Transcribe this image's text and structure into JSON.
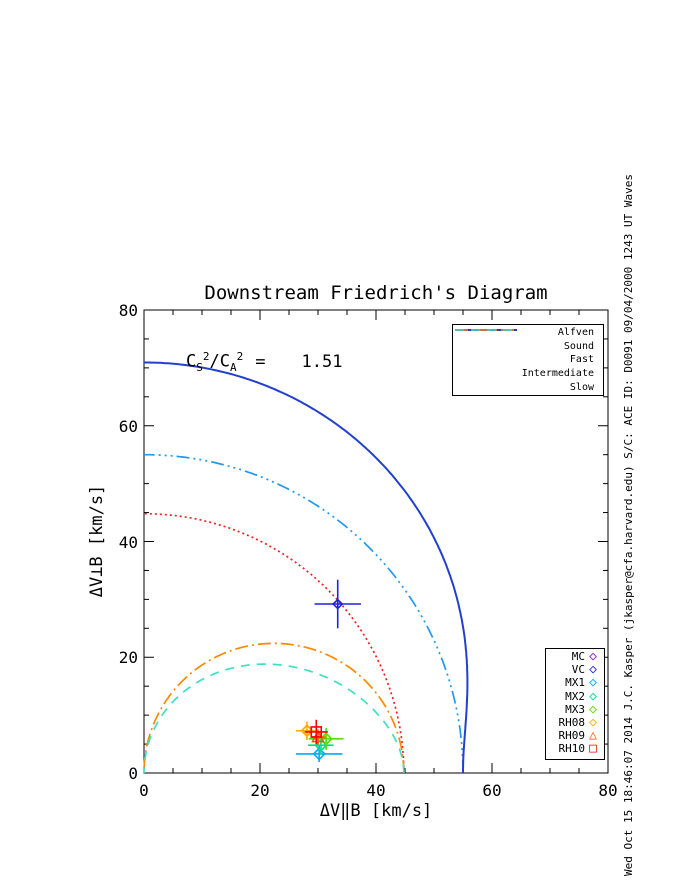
{
  "title": "Downstream Friedrich's Diagram",
  "annotation": {
    "c1": "C",
    "s1": "S",
    "e1": "2",
    "slash": "/",
    "c2": "C",
    "s2": "A",
    "e2": "2",
    "eq": "=",
    "value": "1.51"
  },
  "axes": {
    "x_label": "ΔV‖B [km/s]",
    "y_label": "ΔV⊥B [km/s]"
  },
  "watermark": "Wed Oct 15 18:46:07 2014  J.C. Kasper (jkasper@cfa.harvard.edu)  S/C: ACE ID: D0091 09/04/2000  1243 UT Waves",
  "chart_data": {
    "type": "line",
    "title": "Downstream Friedrich's Diagram",
    "xlabel": "ΔV‖B [km/s]",
    "ylabel": "ΔV⊥B [km/s]",
    "xlim": [
      0,
      80
    ],
    "ylim": [
      0,
      80
    ],
    "xticks": [
      0,
      20,
      40,
      60,
      80
    ],
    "yticks": [
      0,
      20,
      40,
      60,
      80
    ],
    "minor_tick_step": 5,
    "grid": false,
    "legend_position": "upper-right",
    "parameters": {
      "cs2_over_ca2": 1.51,
      "alfven_speed_km_s": 44.8,
      "sound_speed_km_s": 55.0
    },
    "curves": [
      {
        "name": "Alfven",
        "color": "#EE2222",
        "style": "dotted",
        "shape": "alfven_circle",
        "x_intercept": 44.8,
        "y_intercept": 44.8
      },
      {
        "name": "Sound",
        "color": "#2299EE",
        "style": "dash-dot-dot",
        "shape": "sound_circle",
        "x_intercept": 55.0,
        "y_intercept": 55.0
      },
      {
        "name": "Fast",
        "color": "#2240CC",
        "style": "solid",
        "shape": "fast_mode",
        "x_intercept": 55.0,
        "y_intercept": 70.9
      },
      {
        "name": "Intermediate",
        "color": "#FF8800",
        "style": "dash-dot",
        "shape": "intermediate_lobe",
        "x_intercept": 44.8,
        "peak_y": 22.4
      },
      {
        "name": "Slow",
        "color": "#3FE0C0",
        "style": "dashed",
        "shape": "slow_mode",
        "x_intercept": 44.8,
        "peak_y": 18.6
      }
    ],
    "legend_events": [
      {
        "name": "MC",
        "symbol": "diamond",
        "color": "#9911CC"
      },
      {
        "name": "VC",
        "symbol": "diamond",
        "color": "#2222DD"
      },
      {
        "name": "MX1",
        "symbol": "diamond",
        "color": "#00AAFF"
      },
      {
        "name": "MX2",
        "symbol": "diamond",
        "color": "#00DD88"
      },
      {
        "name": "MX3",
        "symbol": "diamond",
        "color": "#55DD00"
      },
      {
        "name": "RH08",
        "symbol": "diamond",
        "color": "#FFAA00"
      },
      {
        "name": "RH09",
        "symbol": "triangle",
        "color": "#FF5500"
      },
      {
        "name": "RH10",
        "symbol": "square",
        "color": "#FF0000"
      }
    ],
    "points": [
      {
        "name": "MX1",
        "symbol": "diamond",
        "color": "#00AAFF",
        "x": 30.2,
        "y": 3.3,
        "xerr": 4.0,
        "yerr": 1.4
      },
      {
        "name": "MX2",
        "symbol": "diamond",
        "color": "#00DD88",
        "x": 30.5,
        "y": 4.8,
        "xerr": 2.2,
        "yerr": 1.6
      },
      {
        "name": "MX3",
        "symbol": "diamond",
        "color": "#55DD00",
        "x": 31.4,
        "y": 5.9,
        "xerr": 3.0,
        "yerr": 1.9
      },
      {
        "name": "RH08",
        "symbol": "diamond",
        "color": "#FFAA00",
        "x": 28.1,
        "y": 7.3,
        "xerr": 1.9,
        "yerr": 1.6
      },
      {
        "name": "RH09",
        "symbol": "triangle",
        "color": "#FF5500",
        "x": 30.0,
        "y": 6.2,
        "xerr": 1.3,
        "yerr": 1.3
      },
      {
        "name": "RH10",
        "symbol": "square",
        "color": "#FF0000",
        "x": 29.7,
        "y": 7.1,
        "xerr": 2.0,
        "yerr": 2.1
      },
      {
        "name": "VC",
        "symbol": "diamond",
        "color": "#2222DD",
        "x": 33.4,
        "y": 29.2,
        "xerr": 4.0,
        "yerr": 4.2
      }
    ]
  }
}
